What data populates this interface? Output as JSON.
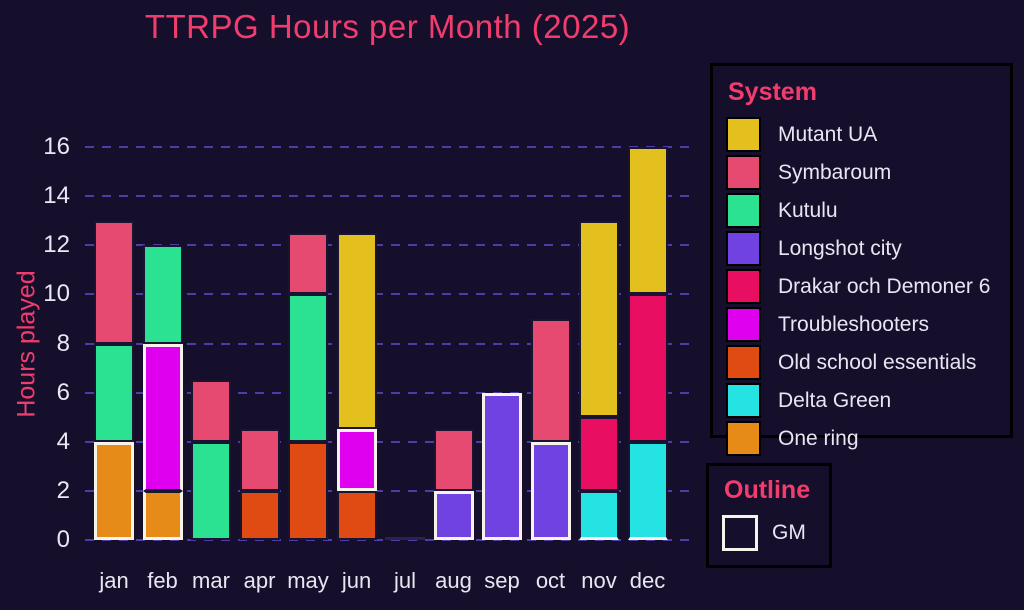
{
  "title": "TTRPG Hours per Month (2025)",
  "y_axis": {
    "label": "Hours played",
    "ticks": [
      0,
      2,
      4,
      6,
      8,
      10,
      12,
      14,
      16
    ],
    "max": 16
  },
  "x_axis": {
    "categories": [
      "jan",
      "feb",
      "mar",
      "apr",
      "may",
      "jun",
      "jul",
      "aug",
      "sep",
      "oct",
      "nov",
      "dec"
    ]
  },
  "legend": {
    "title": "System",
    "items": [
      "Mutant UA",
      "Symbaroum",
      "Kutulu",
      "Longshot city",
      "Drakar och Demoner 6",
      "Troubleshooters",
      "Old school essentials",
      "Delta Green",
      "One ring"
    ]
  },
  "outline_legend": {
    "title": "Outline",
    "item_label": "GM"
  },
  "chart_data": {
    "type": "bar",
    "stacked": true,
    "title": "TTRPG Hours per Month (2025)",
    "xlabel": "",
    "ylabel": "Hours played",
    "ylim": [
      0,
      16
    ],
    "grid": "horizontal dashed lines at every 2 hours",
    "legend_position": "right",
    "categories": [
      "jan",
      "feb",
      "mar",
      "apr",
      "may",
      "jun",
      "jul",
      "aug",
      "sep",
      "oct",
      "nov",
      "dec"
    ],
    "totals": [
      13,
      12,
      6.5,
      4.5,
      12.5,
      12.5,
      0,
      4.5,
      6,
      9,
      13,
      16
    ],
    "months": [
      {
        "month": "jan",
        "segments": [
          {
            "system": "One ring",
            "hours": 4,
            "gm": true
          },
          {
            "system": "Kutulu",
            "hours": 4
          },
          {
            "system": "Symbaroum",
            "hours": 5
          }
        ]
      },
      {
        "month": "feb",
        "segments": [
          {
            "system": "One ring",
            "hours": 2,
            "gm": true
          },
          {
            "system": "Troubleshooters",
            "hours": 6,
            "gm": true
          },
          {
            "system": "Kutulu",
            "hours": 4
          }
        ]
      },
      {
        "month": "mar",
        "segments": [
          {
            "system": "Kutulu",
            "hours": 4
          },
          {
            "system": "Symbaroum",
            "hours": 2.5
          }
        ]
      },
      {
        "month": "apr",
        "segments": [
          {
            "system": "Old school essentials",
            "hours": 2
          },
          {
            "system": "Symbaroum",
            "hours": 2.5
          }
        ]
      },
      {
        "month": "may",
        "segments": [
          {
            "system": "Old school essentials",
            "hours": 4
          },
          {
            "system": "Kutulu",
            "hours": 6
          },
          {
            "system": "Symbaroum",
            "hours": 2.5
          }
        ]
      },
      {
        "month": "jun",
        "segments": [
          {
            "system": "Old school essentials",
            "hours": 2
          },
          {
            "system": "Troubleshooters",
            "hours": 2.5,
            "gm": true
          },
          {
            "system": "Mutant UA",
            "hours": 8
          }
        ]
      },
      {
        "month": "jul",
        "segments": []
      },
      {
        "month": "aug",
        "segments": [
          {
            "system": "Longshot city",
            "hours": 2,
            "gm": true
          },
          {
            "system": "Symbaroum",
            "hours": 2.5
          }
        ]
      },
      {
        "month": "sep",
        "segments": [
          {
            "system": "Longshot city",
            "hours": 6,
            "gm": true
          }
        ]
      },
      {
        "month": "oct",
        "segments": [
          {
            "system": "Longshot city",
            "hours": 4,
            "gm": true
          },
          {
            "system": "Symbaroum",
            "hours": 5
          }
        ]
      },
      {
        "month": "nov",
        "segments": [
          {
            "system": "Delta Green",
            "hours": 2,
            "bottom_edge_white": true
          },
          {
            "system": "Drakar och Demoner 6",
            "hours": 3
          },
          {
            "system": "Mutant UA",
            "hours": 8
          }
        ]
      },
      {
        "month": "dec",
        "segments": [
          {
            "system": "Delta Green",
            "hours": 4,
            "bottom_edge_white": true
          },
          {
            "system": "Drakar och Demoner 6",
            "hours": 6
          },
          {
            "system": "Mutant UA",
            "hours": 6
          }
        ]
      }
    ]
  },
  "colors": {
    "background": "#160f2c",
    "accent_pink": "#f23c6e",
    "tick_label": "#eae7f3",
    "gridline": "#4d3da8",
    "segment_edge": "#1a1433",
    "gm_outline": "#f7f3ea",
    "legend_border": "#000000",
    "zero_bar": "#2a2350",
    "systems": {
      "Mutant UA": "#e4c01f",
      "Symbaroum": "#e64a71",
      "Kutulu": "#2be293",
      "Longshot city": "#7142e2",
      "Drakar och Demoner 6": "#e80f62",
      "Troubleshooters": "#e000f0",
      "Old school essentials": "#df4b12",
      "Delta Green": "#25e3e3",
      "One ring": "#e68b17"
    }
  }
}
